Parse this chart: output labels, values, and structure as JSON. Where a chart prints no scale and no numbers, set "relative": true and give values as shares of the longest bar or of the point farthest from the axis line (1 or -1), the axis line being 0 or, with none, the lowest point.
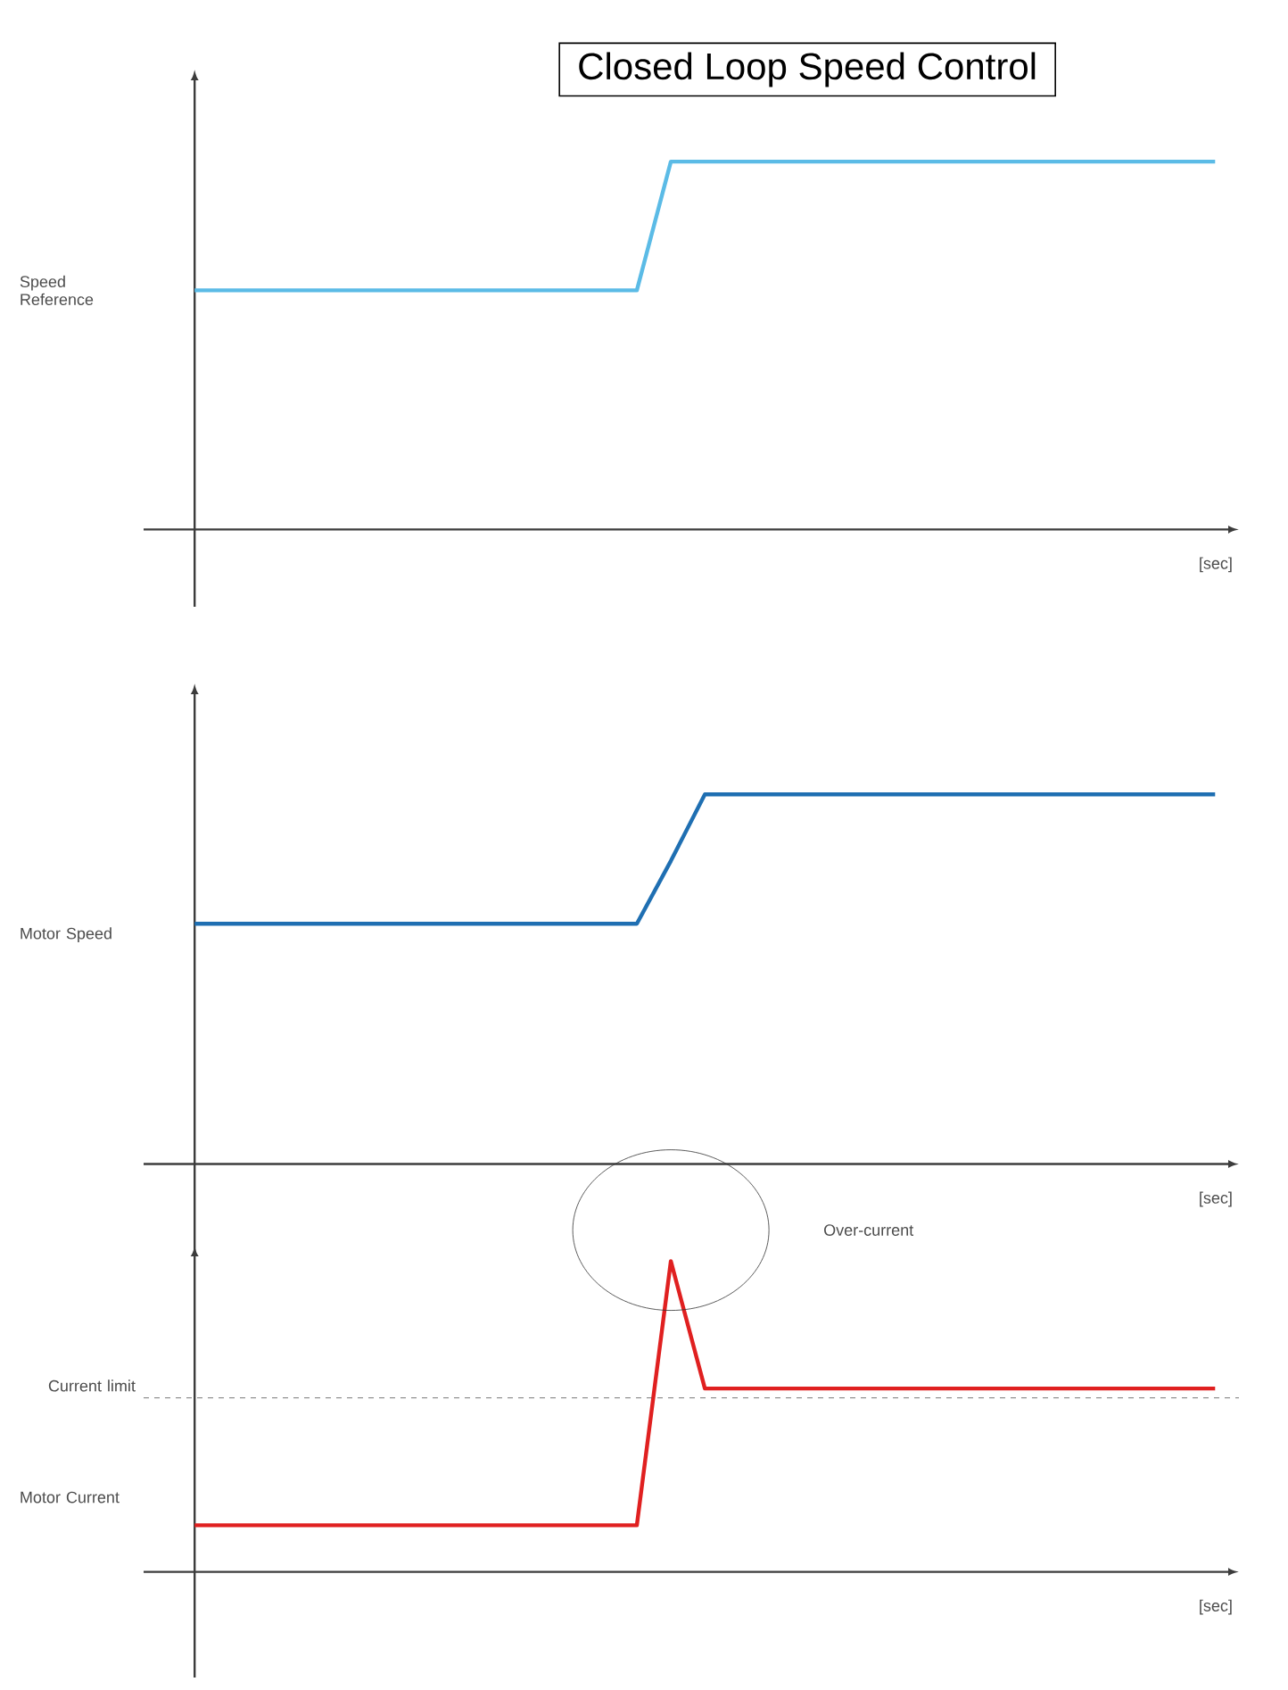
{
  "chart_data": [
    {
      "type": "line",
      "title": "Closed Loop Speed Control",
      "ylabel": "Speed Reference",
      "xlabel": "[sec]",
      "relative": true,
      "line_style": "solid",
      "categories": [
        null,
        null,
        null,
        null,
        null,
        null,
        null,
        null,
        null,
        null,
        null,
        null,
        null,
        null,
        null,
        null,
        null,
        null,
        null,
        null,
        null,
        null,
        null,
        null,
        null,
        null,
        null,
        null,
        null,
        null,
        null
      ],
      "series": [
        {
          "color": "#5bbbe6",
          "values": [
            0.65,
            0.65,
            0.65,
            0.65,
            0.65,
            0.65,
            0.65,
            0.65,
            0.65,
            0.65,
            0.65,
            0.65,
            0.65,
            0.65,
            1,
            1,
            1,
            1,
            1,
            1,
            1,
            1,
            1,
            1,
            1,
            1,
            1,
            1,
            1,
            1,
            1
          ]
        }
      ]
    },
    {
      "type": "line",
      "ylabel": "Motor Speed",
      "xlabel": "[sec]",
      "relative": true,
      "line_style": "solid",
      "categories": [
        null,
        null,
        null,
        null,
        null,
        null,
        null,
        null,
        null,
        null,
        null,
        null,
        null,
        null,
        null,
        null,
        null,
        null,
        null,
        null,
        null,
        null,
        null,
        null,
        null,
        null,
        null,
        null,
        null,
        null,
        null
      ],
      "series": [
        {
          "color": "#1f6fb2",
          "values": [
            0.65,
            0.65,
            0.65,
            0.65,
            0.65,
            0.65,
            0.65,
            0.65,
            0.65,
            0.65,
            0.65,
            0.65,
            0.65,
            0.65,
            0.82,
            1,
            1,
            1,
            1,
            1,
            1,
            1,
            1,
            1,
            1,
            1,
            1,
            1,
            1,
            1,
            1
          ]
        }
      ]
    },
    {
      "type": "line",
      "ylabel": "Motor Current",
      "xlabel": "[sec]",
      "relative": true,
      "line_style": "solid",
      "categories": [
        null,
        null,
        null,
        null,
        null,
        null,
        null,
        null,
        null,
        null,
        null,
        null,
        null,
        null,
        null,
        null,
        null,
        null,
        null,
        null,
        null,
        null,
        null,
        null,
        null,
        null,
        null,
        null,
        null,
        null,
        null
      ],
      "series": [
        {
          "color": "#e02020",
          "values": [
            0.15,
            0.15,
            0.15,
            0.15,
            0.15,
            0.15,
            0.15,
            0.15,
            0.15,
            0.15,
            0.15,
            0.15,
            0.15,
            0.15,
            1,
            0.59,
            0.59,
            0.59,
            0.59,
            0.59,
            0.59,
            0.59,
            0.59,
            0.59,
            0.59,
            0.59,
            0.59,
            0.59,
            0.59,
            0.59,
            0.59
          ]
        }
      ],
      "ref_lines": [
        {
          "axis": "y",
          "value": 0.56,
          "label": "Current limit",
          "line_style": "dashed",
          "color": "#555555"
        }
      ],
      "annotations": [
        "Over-current"
      ]
    }
  ]
}
